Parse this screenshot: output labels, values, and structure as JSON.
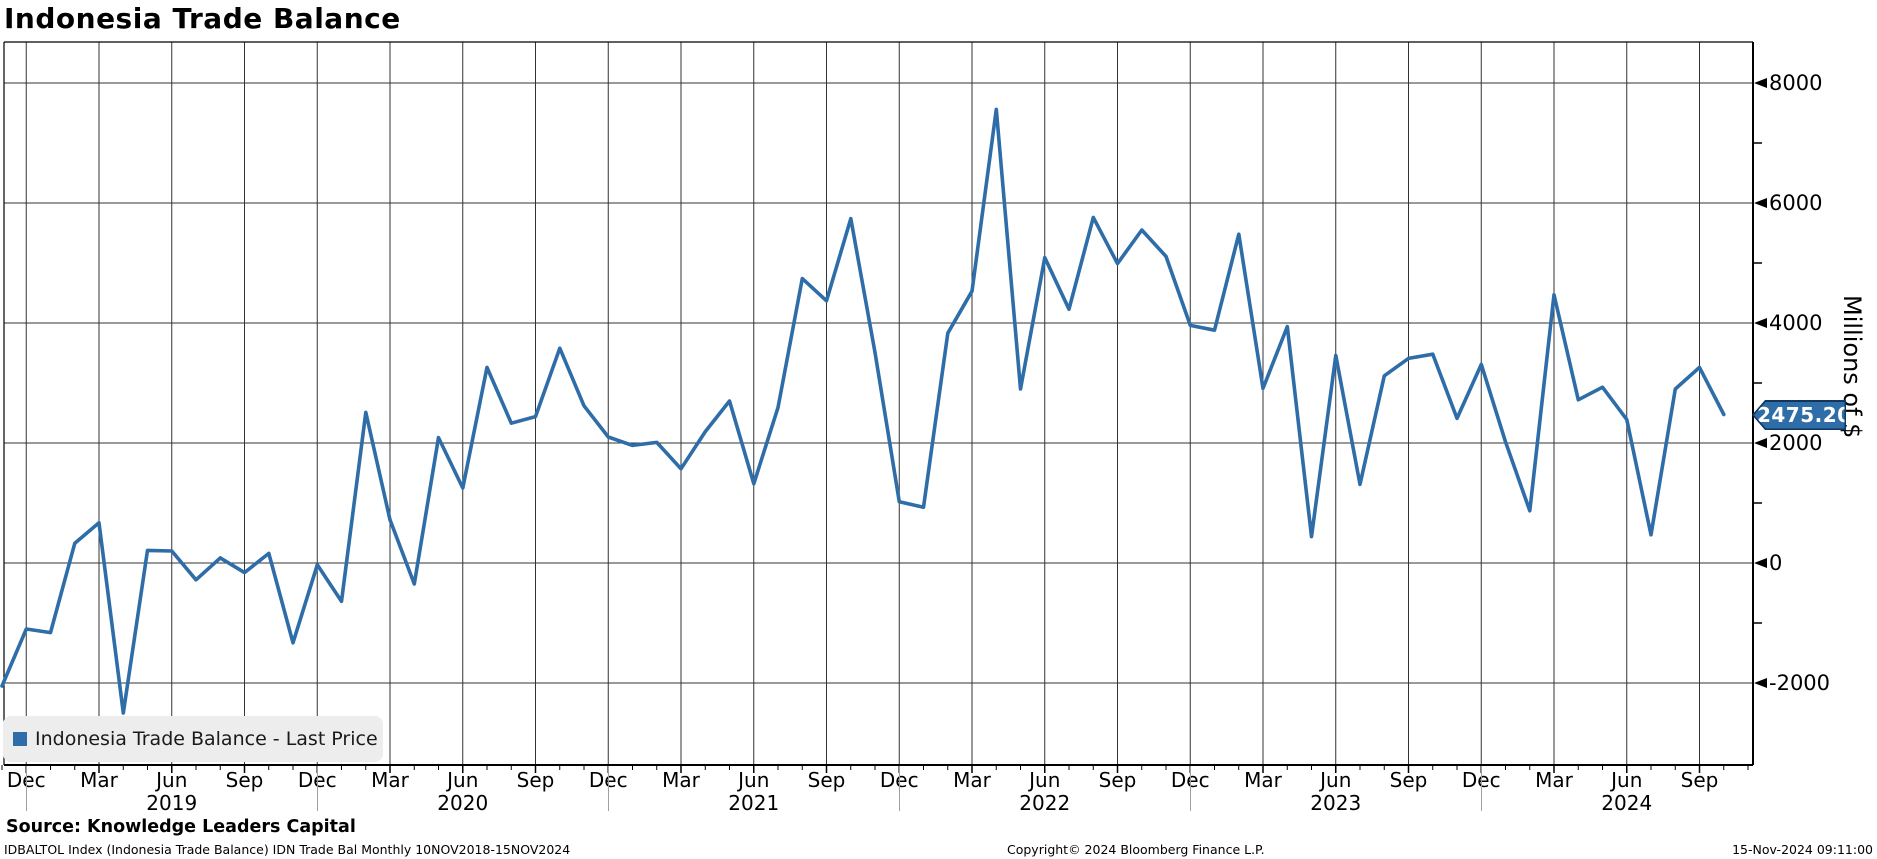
{
  "title": "Indonesia Trade Balance",
  "legend": {
    "label": "Indonesia Trade Balance - Last Price",
    "swatch_color": "#2e6da8"
  },
  "badge": {
    "value": "2475.20",
    "fill": "#2e6da8",
    "border": "#10365c",
    "text_color": "#ffffff"
  },
  "y_axis": {
    "unit_label": "Millions of $",
    "major_ticks": [
      "8000",
      "6000",
      "4000",
      "2000",
      "0",
      "-2000"
    ],
    "major_values": [
      8000,
      6000,
      4000,
      2000,
      0,
      -2000
    ],
    "minor_values": [
      7000,
      5000,
      3000,
      1000,
      -1000
    ]
  },
  "x_axis": {
    "quarter_cycle": [
      "Dec",
      "Mar",
      "Jun",
      "Sep"
    ],
    "quarter_count": 24,
    "year_labels": [
      "2019",
      "2020",
      "2021",
      "2022",
      "2023",
      "2024"
    ]
  },
  "footer": {
    "source": "Source: Knowledge Leaders Capital",
    "description": "IDBALTOL Index (Indonesia Trade Balance) IDN Trade Bal  Monthly 10NOV2018-15NOV2024",
    "copyright": "Copyright© 2024 Bloomberg Finance L.P.",
    "timestamp": "15-Nov-2024 09:11:00"
  },
  "colors": {
    "line": "#2e6da8",
    "grid": "#333333",
    "axis": "#000000",
    "legend_bg": "#ededed",
    "year_separator": "#a0a0a0"
  },
  "chart_data": {
    "type": "line",
    "title": "Indonesia Trade Balance",
    "ylabel": "Millions of $",
    "xlabel": "",
    "grid": true,
    "legend_position": "bottom-left",
    "x_range": [
      "2018-11",
      "2024-10"
    ],
    "ylim": [
      -3400,
      8600
    ],
    "y_major_ticks": [
      8000,
      6000,
      4000,
      2000,
      0,
      -2000
    ],
    "y_minor_ticks": [
      7000,
      5000,
      3000,
      1000,
      -1000
    ],
    "last_price": 2475.2,
    "series": [
      {
        "name": "Indonesia Trade Balance - Last Price",
        "color": "#2e6da8",
        "x": [
          "2018-11",
          "2018-12",
          "2019-01",
          "2019-02",
          "2019-03",
          "2019-04",
          "2019-05",
          "2019-06",
          "2019-07",
          "2019-08",
          "2019-09",
          "2019-10",
          "2019-11",
          "2019-12",
          "2020-01",
          "2020-02",
          "2020-03",
          "2020-04",
          "2020-05",
          "2020-06",
          "2020-07",
          "2020-08",
          "2020-09",
          "2020-10",
          "2020-11",
          "2020-12",
          "2021-01",
          "2021-02",
          "2021-03",
          "2021-04",
          "2021-05",
          "2021-06",
          "2021-07",
          "2021-08",
          "2021-09",
          "2021-10",
          "2021-11",
          "2021-12",
          "2022-01",
          "2022-02",
          "2022-03",
          "2022-04",
          "2022-05",
          "2022-06",
          "2022-07",
          "2022-08",
          "2022-09",
          "2022-10",
          "2022-11",
          "2022-12",
          "2023-01",
          "2023-02",
          "2023-03",
          "2023-04",
          "2023-05",
          "2023-06",
          "2023-07",
          "2023-08",
          "2023-09",
          "2023-10",
          "2023-11",
          "2023-12",
          "2024-01",
          "2024-02",
          "2024-03",
          "2024-04",
          "2024-05",
          "2024-06",
          "2024-07",
          "2024-08",
          "2024-09",
          "2024-10"
        ],
        "values": [
          -2050,
          -1100,
          -1160,
          330,
          670,
          -2500,
          210,
          200,
          -280,
          85,
          -160,
          160,
          -1330,
          -30,
          -640,
          2510,
          720,
          -350,
          2090,
          1250,
          3260,
          2330,
          2440,
          3580,
          2620,
          2100,
          1960,
          2010,
          1570,
          2190,
          2700,
          1320,
          2590,
          4740,
          4370,
          5740,
          3510,
          1020,
          930,
          3830,
          4530,
          7560,
          2900,
          5090,
          4230,
          5760,
          4990,
          5550,
          5110,
          3960,
          3880,
          5480,
          2910,
          3940,
          440,
          3460,
          1310,
          3120,
          3410,
          3480,
          2410,
          3310,
          2020,
          870,
          4470,
          2720,
          2930,
          2390,
          470,
          2900,
          3260,
          2475.2
        ]
      }
    ]
  }
}
